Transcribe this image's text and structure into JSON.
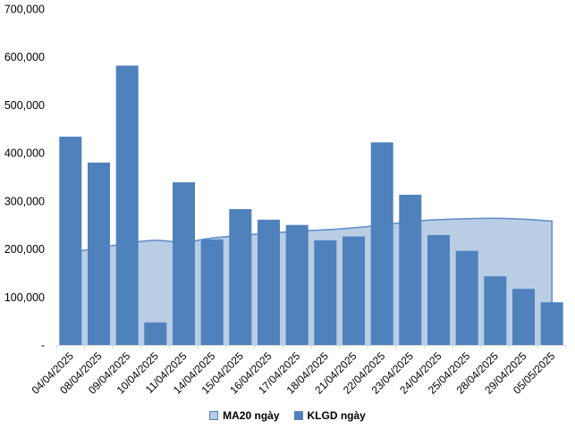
{
  "chart_data": {
    "type": "combo",
    "title": "",
    "categories": [
      "04/04/2025",
      "08/04/2025",
      "09/04/2025",
      "10/04/2025",
      "11/04/2025",
      "14/04/2025",
      "15/04/2025",
      "16/04/2025",
      "17/04/2025",
      "18/04/2025",
      "21/04/2025",
      "22/04/2025",
      "23/04/2025",
      "24/04/2025",
      "25/04/2025",
      "28/04/2025",
      "29/04/2025",
      "05/05/2025"
    ],
    "series": [
      {
        "name": "MA20 ngày",
        "chart_type": "area",
        "smooth": true,
        "fill_color": "#B9CDE5",
        "line_color": "#5B8BC9",
        "values": [
          193000,
          202000,
          212000,
          218000,
          214000,
          223000,
          228000,
          233000,
          237000,
          240000,
          244000,
          250000,
          257000,
          261000,
          263000,
          264000,
          262000,
          258000
        ]
      },
      {
        "name": "KLGD ngày",
        "chart_type": "bar",
        "color": "#4F81BD",
        "values": [
          434000,
          380000,
          582000,
          47000,
          339000,
          220000,
          283000,
          261000,
          250000,
          218000,
          226000,
          422000,
          313000,
          229000,
          196000,
          143000,
          117000,
          89000
        ]
      }
    ],
    "y_axis": {
      "min": 0,
      "max": 700000,
      "step": 100000,
      "tick_labels": [
        "-",
        "100,000",
        "200,000",
        "300,000",
        "400,000",
        "500,000",
        "600,000",
        "700,000"
      ]
    },
    "x_axis": {
      "label_rotation_deg": -45
    },
    "legend_position": "bottom",
    "grid": false,
    "axis_color": "#D6D6D6",
    "text_color": "#000000",
    "background_color": "#FFFFFF"
  }
}
